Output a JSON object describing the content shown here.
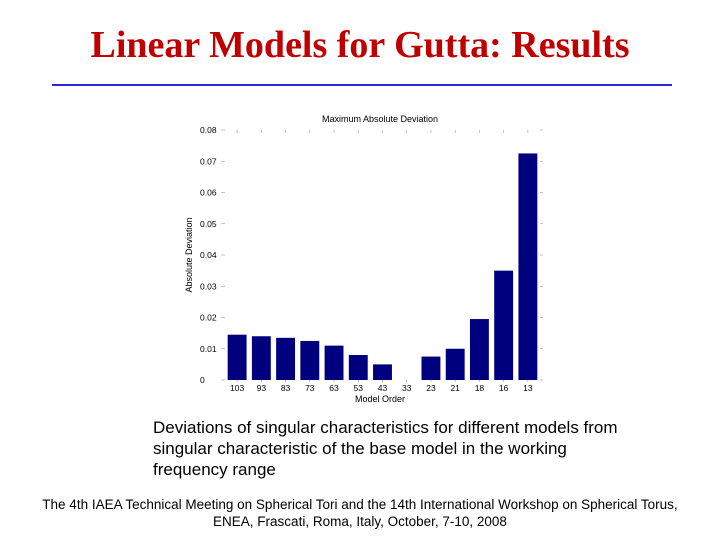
{
  "slide": {
    "title": "Linear Models for Gutta: Results",
    "caption": "Deviations of singular characteristics for different models from singular characteristic of the base model in the working frequency range",
    "footer": "The 4th IAEA Technical Meeting on Spherical Tori and the 14th International Workshop on Spherical Torus, ENEA, Frascati, Roma, Italy, October, 7-10, 2008"
  },
  "colors": {
    "title": "#c00000",
    "rule": "#2a2ad0",
    "bar": "#00007f"
  },
  "chart_data": {
    "type": "bar",
    "title": "Maximum Absolute Deviation",
    "xlabel": "Model Order",
    "ylabel": "Absolute Deviation",
    "categories": [
      "103",
      "93",
      "83",
      "73",
      "63",
      "53",
      "43",
      "33",
      "23",
      "21",
      "18",
      "16",
      "13"
    ],
    "values": [
      0.0145,
      0.014,
      0.0135,
      0.0125,
      0.011,
      0.008,
      0.005,
      0.0,
      0.0075,
      0.01,
      0.0195,
      0.035,
      0.0725
    ],
    "ylim": [
      0,
      0.08
    ],
    "yticks": [
      "0",
      "0.01",
      "0.02",
      "0.03",
      "0.04",
      "0.05",
      "0.06",
      "0.07",
      "0.08"
    ],
    "grid": false
  }
}
